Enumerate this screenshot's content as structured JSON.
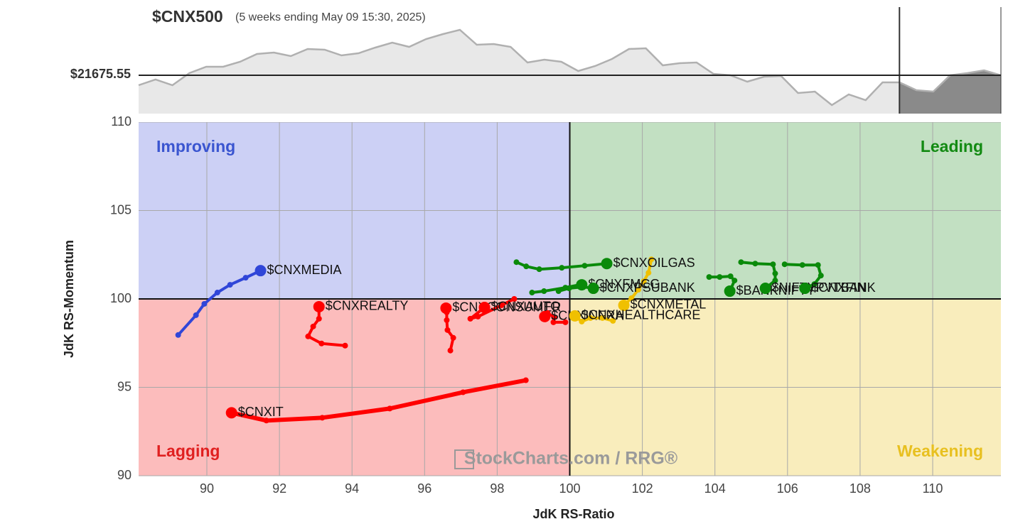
{
  "chart_data": [
    {
      "type": "line",
      "title": "$CNX500",
      "subtitle": "(5 weeks ending May 09 15:30, 2025)",
      "values": [
        21536,
        21616,
        21536,
        21706,
        21796,
        21796,
        21866,
        21976,
        21996,
        21946,
        22046,
        22036,
        21956,
        21986,
        22066,
        22136,
        22076,
        22186,
        22256,
        22316,
        22106,
        22116,
        22076,
        21856,
        21896,
        21866,
        21736,
        21806,
        21906,
        22046,
        22056,
        21816,
        21846,
        21856,
        21696,
        21676,
        21586,
        21656,
        21666,
        21426,
        21446,
        21256,
        21406,
        21326,
        21576,
        21576,
        21466,
        21446,
        21676,
        21706,
        21746,
        21676
      ],
      "benchmark_price": {
        "value": 21675.55,
        "label": "$21675.55"
      },
      "ylim": [
        21136,
        22636
      ],
      "color": "#b0b0b0"
    },
    {
      "type": "rrg",
      "x_label": "JdK RS-Ratio",
      "y_label": "JdK RS-Momentum",
      "xlim": [
        88.12,
        111.88
      ],
      "ylim": [
        90,
        110
      ],
      "xticks": [
        90,
        92,
        94,
        96,
        98,
        100,
        102,
        104,
        106,
        108,
        110
      ],
      "yticks": [
        90,
        95,
        100,
        105,
        110
      ],
      "center": 100,
      "grid": true,
      "quadrants": {
        "improving": "Improving",
        "leading": "Leading",
        "lagging": "Lagging",
        "weakening": "Weakening"
      },
      "watermark": "StockCharts.com / RRG®",
      "series": [
        {
          "name": "$CNXMEDIA",
          "color": "#3046d8",
          "x": [
            89.21,
            89.7,
            89.93,
            90.29,
            90.64,
            91.07,
            91.48
          ],
          "values": [
            97.96,
            99.08,
            99.72,
            100.36,
            100.8,
            101.2,
            101.6
          ]
        },
        {
          "name": "$CNXIT",
          "color": "#ff0000",
          "x": [
            98.79,
            97.06,
            95.04,
            93.18,
            91.64,
            90.68
          ],
          "values": [
            95.4,
            94.72,
            93.8,
            93.28,
            93.12,
            93.56
          ]
        },
        {
          "name": "$CNXREALTY",
          "color": "#ff0000",
          "x": [
            93.81,
            93.16,
            92.79,
            92.93,
            93.09,
            93.09
          ],
          "values": [
            97.36,
            97.48,
            97.88,
            98.44,
            98.88,
            99.56
          ]
        },
        {
          "name": "$CNXCONSUMER",
          "color": "#ff0000",
          "x": [
            96.71,
            96.79,
            96.63,
            96.61,
            96.61,
            96.59
          ],
          "values": [
            97.08,
            97.8,
            98.24,
            98.8,
            99.24,
            99.48
          ]
        },
        {
          "name": "$CNXAUTO",
          "color": "#ff0000",
          "x": [
            98.47,
            98.12,
            97.47,
            97.26,
            97.65
          ],
          "values": [
            100.0,
            99.64,
            99.0,
            98.88,
            99.52
          ]
        },
        {
          "name": "$CNXINFRA",
          "color": "#ff0000",
          "x": [
            99.88,
            99.55,
            99.57,
            99.39,
            99.31
          ],
          "values": [
            98.68,
            98.68,
            98.96,
            99.2,
            99.0
          ]
        },
        {
          "name": "$CNXMETAL",
          "color": "#f0c000",
          "x": [
            102.25,
            102.17,
            102.04,
            101.89,
            101.7,
            101.49
          ],
          "values": [
            102.24,
            101.48,
            101.0,
            100.52,
            100.04,
            99.64
          ]
        },
        {
          "name": "$CNXHEALTHCARE",
          "color": "#f0c000",
          "x": [
            101.19,
            100.9,
            100.57,
            100.33,
            100.14
          ],
          "values": [
            98.76,
            98.92,
            98.92,
            98.72,
            99.04
          ]
        },
        {
          "name": "$CNXOILGAS",
          "color": "#0a8a0a",
          "x": [
            98.53,
            98.8,
            99.16,
            99.78,
            100.41,
            101.02
          ],
          "values": [
            102.08,
            101.84,
            101.68,
            101.76,
            101.88,
            102.0
          ]
        },
        {
          "name": "$CNXFMCG",
          "color": "#0a8a0a",
          "x": [
            98.96,
            99.29,
            99.88,
            100.27,
            100.33
          ],
          "values": [
            100.36,
            100.44,
            100.64,
            100.8,
            100.8
          ]
        },
        {
          "name": "$CNXPSUBANK",
          "color": "#0a8a0a",
          "x": [
            99.69,
            99.98,
            100.37,
            100.65
          ],
          "values": [
            100.44,
            100.6,
            100.68,
            100.6
          ]
        },
        {
          "name": "$BANKNIFTY",
          "color": "#0a8a0a",
          "x": [
            103.84,
            104.13,
            104.43,
            104.54,
            104.41
          ],
          "values": [
            101.24,
            101.24,
            101.28,
            101.04,
            100.44
          ]
        },
        {
          "name": "$NIFTYPVTBANK",
          "color": "#0a8a0a",
          "x": [
            104.72,
            105.11,
            105.6,
            105.66,
            105.66,
            105.39
          ],
          "values": [
            102.08,
            102.0,
            101.96,
            101.44,
            101.04,
            100.6
          ]
        },
        {
          "name": "$CNXFIN",
          "color": "#0a8a0a",
          "x": [
            105.92,
            106.41,
            106.84,
            106.92,
            106.74,
            106.48
          ],
          "values": [
            101.96,
            101.92,
            101.92,
            101.32,
            100.84,
            100.6
          ]
        }
      ]
    }
  ]
}
